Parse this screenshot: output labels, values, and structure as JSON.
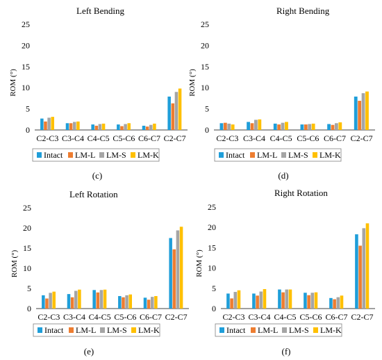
{
  "colors": {
    "intact": "#1F9ED9",
    "lm_l": "#ED7D31",
    "lm_s": "#A5A5A5",
    "lm_k": "#FFC000",
    "axis": "#000000",
    "legend_border": "#7F7F7F"
  },
  "chart_data": [
    {
      "type": "bar",
      "title": "Left Bending",
      "panel_label": "(c)",
      "ylabel": "ROM (°)",
      "ylim": [
        0,
        25
      ],
      "yticks": [
        0,
        5,
        10,
        15,
        20,
        25
      ],
      "categories": [
        "C2-C3",
        "C3-C4",
        "C4-C5",
        "C5-C6",
        "C6-C7",
        "C2-C7"
      ],
      "series": [
        {
          "name": "Intact",
          "values": [
            2.7,
            1.6,
            1.3,
            1.3,
            1.0,
            7.9
          ]
        },
        {
          "name": "LM-L",
          "values": [
            2.0,
            1.6,
            1.0,
            0.9,
            0.8,
            6.3
          ]
        },
        {
          "name": "LM-S",
          "values": [
            2.9,
            1.9,
            1.4,
            1.4,
            1.2,
            9.0
          ]
        },
        {
          "name": "LM-K",
          "values": [
            3.1,
            2.0,
            1.5,
            1.6,
            1.5,
            9.8
          ]
        }
      ],
      "legend": "bottom"
    },
    {
      "type": "bar",
      "title": "Right Bending",
      "panel_label": "(d)",
      "ylabel": "ROM (°)",
      "ylim": [
        0,
        25
      ],
      "yticks": [
        0,
        5,
        10,
        15,
        20,
        25
      ],
      "categories": [
        "C2-C3",
        "C3-C4",
        "C4-C5",
        "C5-C6",
        "C6-C7",
        "C2-C7"
      ],
      "series": [
        {
          "name": "Intact",
          "values": [
            1.6,
            1.9,
            1.5,
            1.3,
            1.4,
            7.9
          ]
        },
        {
          "name": "LM-L",
          "values": [
            1.7,
            1.6,
            1.3,
            1.3,
            1.2,
            6.9
          ]
        },
        {
          "name": "LM-S",
          "values": [
            1.5,
            2.4,
            1.7,
            1.4,
            1.6,
            8.7
          ]
        },
        {
          "name": "LM-K",
          "values": [
            1.3,
            2.5,
            1.9,
            1.5,
            1.8,
            9.1
          ]
        }
      ],
      "legend": "bottom"
    },
    {
      "type": "bar",
      "title": "Left Rotation",
      "panel_label": "(e)",
      "ylabel": "ROM (°)",
      "ylim": [
        0,
        25
      ],
      "yticks": [
        0,
        5,
        10,
        15,
        20,
        25
      ],
      "categories": [
        "C2-C3",
        "C3-C4",
        "C4-C5",
        "C5-C6",
        "C6-C7",
        "C2-C7"
      ],
      "series": [
        {
          "name": "Intact",
          "values": [
            3.3,
            3.6,
            4.6,
            3.1,
            2.7,
            17.5
          ]
        },
        {
          "name": "LM-L",
          "values": [
            2.5,
            2.8,
            4.0,
            2.8,
            2.2,
            14.7
          ]
        },
        {
          "name": "LM-S",
          "values": [
            3.9,
            4.4,
            4.6,
            3.3,
            2.9,
            19.4
          ]
        },
        {
          "name": "LM-K",
          "values": [
            4.2,
            4.7,
            4.7,
            3.5,
            3.1,
            20.3
          ]
        }
      ],
      "legend": "bottom"
    },
    {
      "type": "bar",
      "title": "Right Rotation",
      "panel_label": "(f)",
      "ylabel": "ROM (°)",
      "ylim": [
        0,
        25
      ],
      "yticks": [
        0,
        5,
        10,
        15,
        20,
        25
      ],
      "categories": [
        "C2-C3",
        "C3-C4",
        "C4-C5",
        "C5-C6",
        "C6-C7",
        "C2-C7"
      ],
      "series": [
        {
          "name": "Intact",
          "values": [
            3.7,
            3.7,
            4.7,
            3.9,
            2.6,
            18.3
          ]
        },
        {
          "name": "LM-L",
          "values": [
            2.5,
            3.2,
            4.0,
            3.3,
            2.3,
            15.5
          ]
        },
        {
          "name": "LM-S",
          "values": [
            4.1,
            4.2,
            4.7,
            3.9,
            2.8,
            19.8
          ]
        },
        {
          "name": "LM-K",
          "values": [
            4.5,
            4.8,
            4.7,
            4.0,
            3.2,
            21.0
          ]
        }
      ],
      "legend": "bottom"
    }
  ]
}
